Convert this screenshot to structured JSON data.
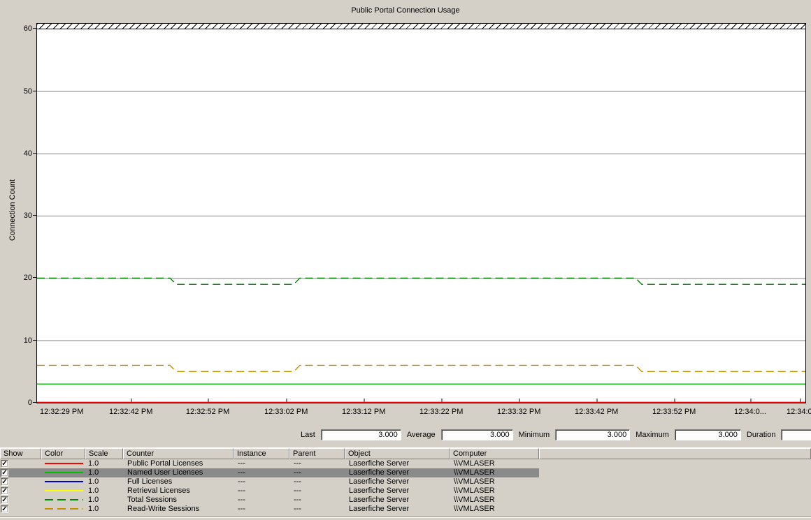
{
  "title": "Public Portal Connection Usage",
  "colors": {
    "background": "#d4d0c8",
    "plot_background": "#ffffff",
    "grid": "#808080",
    "selected_row": "#8a8a8a",
    "red": "#ff0000",
    "green": "#00c000",
    "blue": "#0000cc",
    "yellow": "#ffff00",
    "dark_green": "#008000",
    "dark_yellow": "#c09000"
  },
  "chart_data": {
    "type": "line",
    "title": "Public Portal Connection Usage",
    "xlabel": "",
    "ylabel": "Connection Count",
    "ylim": [
      0,
      60
    ],
    "grid": true,
    "ytick_values": [
      0,
      10,
      20,
      30,
      40,
      50,
      60
    ],
    "grid_values": [
      10,
      20,
      30,
      40,
      50
    ],
    "x_labels": [
      {
        "text": "12:32:29 PM",
        "pos": 0.033
      },
      {
        "text": "12:32:42 PM",
        "pos": 0.123
      },
      {
        "text": "12:32:52 PM",
        "pos": 0.223
      },
      {
        "text": "12:33:02 PM",
        "pos": 0.325
      },
      {
        "text": "12:33:12 PM",
        "pos": 0.426
      },
      {
        "text": "12:33:22 PM",
        "pos": 0.527
      },
      {
        "text": "12:33:32 PM",
        "pos": 0.628
      },
      {
        "text": "12:33:42 PM",
        "pos": 0.729
      },
      {
        "text": "12:33:52 PM",
        "pos": 0.83
      },
      {
        "text": "12:34:0...",
        "pos": 0.929
      },
      {
        "text": "12:34:0",
        "pos": 0.993
      }
    ],
    "series": [
      {
        "name": "Full Licenses",
        "color": "#0000cc",
        "dashed": false,
        "points": [
          [
            0,
            0
          ],
          [
            1,
            0
          ]
        ]
      },
      {
        "name": "Retrieval Licenses",
        "color": "#ffff00",
        "dashed": false,
        "points": [
          [
            0,
            0
          ],
          [
            1,
            0
          ]
        ]
      },
      {
        "name": "Public Portal Licenses",
        "color": "#ff0000",
        "dashed": false,
        "points": [
          [
            0,
            0
          ],
          [
            1,
            0
          ]
        ]
      },
      {
        "name": "Named User Licenses",
        "color": "#00c000",
        "dashed": false,
        "points": [
          [
            0,
            3
          ],
          [
            1,
            3
          ]
        ]
      },
      {
        "name": "Total Sessions",
        "color": "#008000",
        "dashed": true,
        "points": [
          [
            0,
            20
          ],
          [
            0.173,
            20
          ],
          [
            0.181,
            19
          ],
          [
            0.334,
            19
          ],
          [
            0.342,
            20
          ],
          [
            0.779,
            20
          ],
          [
            0.787,
            19
          ],
          [
            1,
            19
          ]
        ]
      },
      {
        "name": "Read-Write Sessions",
        "color": "#c09000",
        "dashed": true,
        "points": [
          [
            0,
            6
          ],
          [
            0.173,
            6
          ],
          [
            0.181,
            5
          ],
          [
            0.334,
            5
          ],
          [
            0.342,
            6
          ],
          [
            0.779,
            6
          ],
          [
            0.787,
            5
          ],
          [
            1,
            5
          ]
        ]
      }
    ]
  },
  "stats": [
    {
      "label": "Last",
      "value": "3.000"
    },
    {
      "label": "Average",
      "value": "3.000"
    },
    {
      "label": "Minimum",
      "value": "3.000"
    },
    {
      "label": "Maximum",
      "value": "3.000"
    },
    {
      "label": "Duration",
      "value": ""
    }
  ],
  "legend": {
    "headers": [
      "Show",
      "Color",
      "Scale",
      "Counter",
      "Instance",
      "Parent",
      "Object",
      "Computer",
      ""
    ],
    "rows": [
      {
        "checked": true,
        "selected": false,
        "color": "#ff0000",
        "dashed": false,
        "scale": "1.0",
        "counter": "Public Portal Licenses",
        "instance": "---",
        "parent": "---",
        "object": "Laserfiche Server",
        "computer": "\\\\VMLASER"
      },
      {
        "checked": true,
        "selected": true,
        "color": "#00c000",
        "dashed": false,
        "scale": "1.0",
        "counter": "Named User Licenses",
        "instance": "---",
        "parent": "---",
        "object": "Laserfiche Server",
        "computer": "\\\\VMLASER"
      },
      {
        "checked": true,
        "selected": false,
        "color": "#0000cc",
        "dashed": false,
        "scale": "1.0",
        "counter": "Full Licenses",
        "instance": "---",
        "parent": "---",
        "object": "Laserfiche Server",
        "computer": "\\\\VMLASER"
      },
      {
        "checked": true,
        "selected": false,
        "color": "#ffff00",
        "dashed": false,
        "scale": "1.0",
        "counter": "Retrieval Licenses",
        "instance": "---",
        "parent": "---",
        "object": "Laserfiche Server",
        "computer": "\\\\VMLASER"
      },
      {
        "checked": true,
        "selected": false,
        "color": "#008000",
        "dashed": true,
        "scale": "1.0",
        "counter": "Total Sessions",
        "instance": "---",
        "parent": "---",
        "object": "Laserfiche Server",
        "computer": "\\\\VMLASER"
      },
      {
        "checked": true,
        "selected": false,
        "color": "#c09000",
        "dashed": true,
        "scale": "1.0",
        "counter": "Read-Write Sessions",
        "instance": "---",
        "parent": "---",
        "object": "Laserfiche Server",
        "computer": "\\\\VMLASER"
      }
    ]
  }
}
